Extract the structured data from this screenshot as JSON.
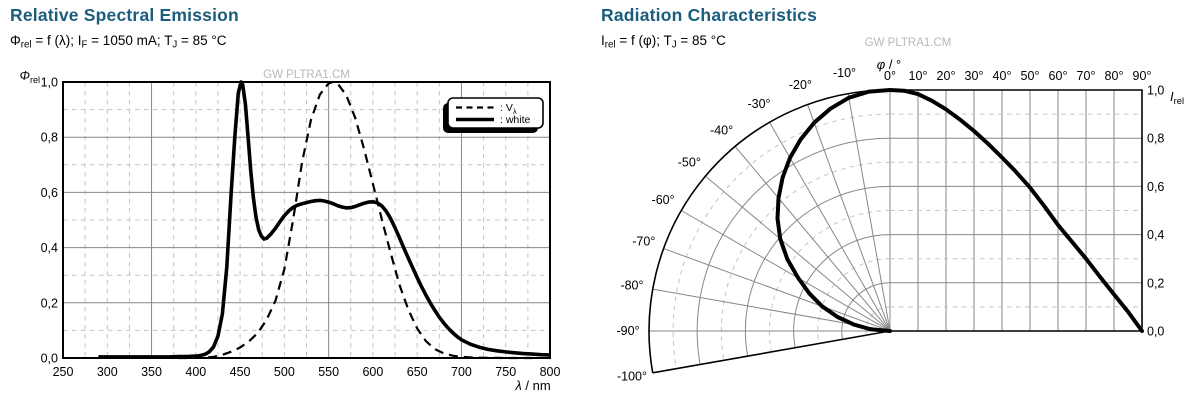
{
  "colors": {
    "title": "#1b5d7d",
    "text": "#000000",
    "watermark": "#b9b9b9",
    "grid_solid": "#878787",
    "grid_dashed": "#c3c3c3",
    "curve": "#000000",
    "frame": "#000000",
    "background": "#ffffff"
  },
  "chart_data": [
    {
      "id": "relative-spectral-emission",
      "type": "line",
      "title": "Relative Spectral Emission",
      "subtitle_segments": [
        {
          "t": "Φ"
        },
        {
          "sub": "rel"
        },
        {
          "t": " = f (λ); I"
        },
        {
          "sub": "F"
        },
        {
          "t": " = 1050 mA; T"
        },
        {
          "sub": "J"
        },
        {
          "t": " = 85 °C"
        }
      ],
      "watermark": "GW PLTRA1.CM",
      "xlabel_segments": [
        {
          "i": "λ"
        },
        {
          "t": " / nm"
        }
      ],
      "ylabel_segments": [
        {
          "i": "Φ"
        },
        {
          "sub": "rel"
        }
      ],
      "xlim": [
        250,
        800
      ],
      "ylim": [
        0,
        1
      ],
      "grid_on": true,
      "x_ticks": [
        [
          250,
          "250"
        ],
        [
          300,
          "300"
        ],
        [
          350,
          "350"
        ],
        [
          400,
          "400"
        ],
        [
          450,
          "450"
        ],
        [
          500,
          "500"
        ],
        [
          550,
          "550"
        ],
        [
          600,
          "600"
        ],
        [
          650,
          "650"
        ],
        [
          700,
          "700"
        ],
        [
          750,
          "750"
        ],
        [
          800,
          "800"
        ]
      ],
      "y_ticks": [
        [
          0,
          "0,0"
        ],
        [
          0.2,
          "0,2"
        ],
        [
          0.4,
          "0,4"
        ],
        [
          0.6,
          "0,6"
        ],
        [
          0.8,
          "0,8"
        ],
        [
          1,
          "1,0"
        ]
      ],
      "grid": {
        "x_minor_step": 25,
        "x_solid": [
          350,
          550,
          700
        ],
        "y_solid": [
          0.2,
          0.4,
          0.6,
          0.8
        ],
        "y_dashed": [
          0.1,
          0.3,
          0.5,
          0.7,
          0.9
        ]
      },
      "legend": {
        "position": "top-right",
        "entries": [
          {
            "style": "dashed",
            "label_segments": [
              {
                "t": ": V"
              },
              {
                "sub": "λ"
              }
            ]
          },
          {
            "style": "solid",
            "label_segments": [
              {
                "t": ": white"
              }
            ]
          }
        ]
      },
      "series": [
        {
          "name": "V_lambda",
          "style": "dashed",
          "points": [
            [
              380,
              0.0001
            ],
            [
              390,
              0.0001
            ],
            [
              400,
              0.0004
            ],
            [
              410,
              0.0012
            ],
            [
              420,
              0.004
            ],
            [
              430,
              0.0116
            ],
            [
              440,
              0.023
            ],
            [
              450,
              0.038
            ],
            [
              460,
              0.06
            ],
            [
              470,
              0.091
            ],
            [
              480,
              0.139
            ],
            [
              490,
              0.208
            ],
            [
              500,
              0.323
            ],
            [
              510,
              0.503
            ],
            [
              520,
              0.71
            ],
            [
              530,
              0.862
            ],
            [
              540,
              0.954
            ],
            [
              550,
              0.995
            ],
            [
              555,
              1.0
            ],
            [
              560,
              0.995
            ],
            [
              570,
              0.952
            ],
            [
              580,
              0.87
            ],
            [
              590,
              0.757
            ],
            [
              600,
              0.631
            ],
            [
              610,
              0.503
            ],
            [
              620,
              0.381
            ],
            [
              630,
              0.265
            ],
            [
              640,
              0.175
            ],
            [
              650,
              0.107
            ],
            [
              660,
              0.061
            ],
            [
              670,
              0.032
            ],
            [
              680,
              0.017
            ],
            [
              690,
              0.0082
            ],
            [
              700,
              0.0041
            ],
            [
              710,
              0.0021
            ],
            [
              720,
              0.001
            ],
            [
              730,
              0.0005
            ],
            [
              740,
              0.0003
            ],
            [
              750,
              0.0001
            ],
            [
              760,
              0.0001
            ],
            [
              770,
              0.0001
            ],
            [
              780,
              0.0001
            ]
          ]
        },
        {
          "name": "white",
          "style": "solid",
          "points": [
            [
              290,
              0.004
            ],
            [
              310,
              0.004
            ],
            [
              330,
              0.004
            ],
            [
              350,
              0.004
            ],
            [
              370,
              0.004
            ],
            [
              380,
              0.005
            ],
            [
              390,
              0.005
            ],
            [
              400,
              0.007
            ],
            [
              405,
              0.009
            ],
            [
              410,
              0.013
            ],
            [
              415,
              0.022
            ],
            [
              420,
              0.04
            ],
            [
              425,
              0.08
            ],
            [
              430,
              0.16
            ],
            [
              435,
              0.33
            ],
            [
              440,
              0.6
            ],
            [
              444,
              0.8
            ],
            [
              448,
              0.96
            ],
            [
              451,
              1.0
            ],
            [
              453,
              0.99
            ],
            [
              456,
              0.92
            ],
            [
              459,
              0.8
            ],
            [
              462,
              0.68
            ],
            [
              465,
              0.58
            ],
            [
              468,
              0.51
            ],
            [
              471,
              0.465
            ],
            [
              474,
              0.442
            ],
            [
              477,
              0.431
            ],
            [
              480,
              0.434
            ],
            [
              485,
              0.45
            ],
            [
              490,
              0.47
            ],
            [
              495,
              0.494
            ],
            [
              500,
              0.516
            ],
            [
              505,
              0.533
            ],
            [
              510,
              0.546
            ],
            [
              515,
              0.554
            ],
            [
              520,
              0.559
            ],
            [
              525,
              0.563
            ],
            [
              530,
              0.567
            ],
            [
              535,
              0.57
            ],
            [
              540,
              0.571
            ],
            [
              545,
              0.569
            ],
            [
              550,
              0.565
            ],
            [
              555,
              0.559
            ],
            [
              560,
              0.552
            ],
            [
              565,
              0.547
            ],
            [
              570,
              0.544
            ],
            [
              575,
              0.545
            ],
            [
              580,
              0.549
            ],
            [
              585,
              0.555
            ],
            [
              590,
              0.561
            ],
            [
              595,
              0.565
            ],
            [
              600,
              0.566
            ],
            [
              605,
              0.562
            ],
            [
              610,
              0.551
            ],
            [
              615,
              0.532
            ],
            [
              620,
              0.505
            ],
            [
              625,
              0.472
            ],
            [
              630,
              0.435
            ],
            [
              635,
              0.398
            ],
            [
              640,
              0.362
            ],
            [
              645,
              0.326
            ],
            [
              650,
              0.291
            ],
            [
              655,
              0.258
            ],
            [
              660,
              0.227
            ],
            [
              665,
              0.198
            ],
            [
              670,
              0.172
            ],
            [
              675,
              0.148
            ],
            [
              680,
              0.127
            ],
            [
              685,
              0.108
            ],
            [
              690,
              0.092
            ],
            [
              695,
              0.078
            ],
            [
              700,
              0.066
            ],
            [
              710,
              0.05
            ],
            [
              720,
              0.039
            ],
            [
              730,
              0.031
            ],
            [
              740,
              0.026
            ],
            [
              750,
              0.022
            ],
            [
              760,
              0.019
            ],
            [
              770,
              0.016
            ],
            [
              780,
              0.014
            ],
            [
              790,
              0.012
            ],
            [
              800,
              0.011
            ]
          ]
        }
      ]
    },
    {
      "id": "radiation-characteristics",
      "type": "polar",
      "title": "Radiation Characteristics",
      "subtitle_segments": [
        {
          "t": "I"
        },
        {
          "sub": "rel"
        },
        {
          "t": " = f (φ); T"
        },
        {
          "sub": "J"
        },
        {
          "t": " = 85 °C"
        }
      ],
      "watermark": "GW PLTRA1.CM",
      "phi_label_segments": [
        {
          "i": "φ"
        },
        {
          "t": " / °"
        }
      ],
      "r_label_segments": [
        {
          "i": "I"
        },
        {
          "sub": "rel"
        }
      ],
      "angle_range_shown": [
        -100,
        90
      ],
      "r_range": [
        0,
        1
      ],
      "angle_ticks": [
        [
          -100,
          "-100°"
        ],
        [
          -90,
          "-90°"
        ],
        [
          -80,
          "-80°"
        ],
        [
          -70,
          "-70°"
        ],
        [
          -60,
          "-60°"
        ],
        [
          -50,
          "-50°"
        ],
        [
          -40,
          "-40°"
        ],
        [
          -30,
          "-30°"
        ],
        [
          -20,
          "-20°"
        ],
        [
          -10,
          "-10°"
        ],
        [
          0,
          "0°"
        ],
        [
          10,
          "10°"
        ],
        [
          20,
          "20°"
        ],
        [
          30,
          "30°"
        ],
        [
          40,
          "40°"
        ],
        [
          50,
          "50°"
        ],
        [
          60,
          "60°"
        ],
        [
          70,
          "70°"
        ],
        [
          80,
          "80°"
        ],
        [
          90,
          "90°"
        ]
      ],
      "r_ticks": [
        [
          1,
          "1,0"
        ],
        [
          0.8,
          "0,8"
        ],
        [
          0.6,
          "0,6"
        ],
        [
          0.4,
          "0,4"
        ],
        [
          0.2,
          "0,2"
        ],
        [
          0,
          "0,0"
        ]
      ],
      "grid": {
        "angle_step": 10,
        "r_solid": [
          0.2,
          0.4,
          0.6,
          0.8
        ],
        "r_dashed": [
          0.1,
          0.3,
          0.5,
          0.7,
          0.9
        ]
      },
      "series": [
        {
          "name": "radiation",
          "style": "solid",
          "symmetric": true,
          "points": [
            [
              0,
              1.0
            ],
            [
              5,
              0.997
            ],
            [
              10,
              0.983
            ],
            [
              15,
              0.955
            ],
            [
              20,
              0.92
            ],
            [
              25,
              0.877
            ],
            [
              30,
              0.83
            ],
            [
              35,
              0.777
            ],
            [
              40,
              0.72
            ],
            [
              45,
              0.66
            ],
            [
              50,
              0.595
            ],
            [
              55,
              0.52
            ],
            [
              60,
              0.44
            ],
            [
              65,
              0.37
            ],
            [
              70,
              0.3
            ],
            [
              75,
              0.225
            ],
            [
              80,
              0.152
            ],
            [
              85,
              0.08
            ],
            [
              90,
              0.0
            ]
          ]
        }
      ]
    }
  ]
}
